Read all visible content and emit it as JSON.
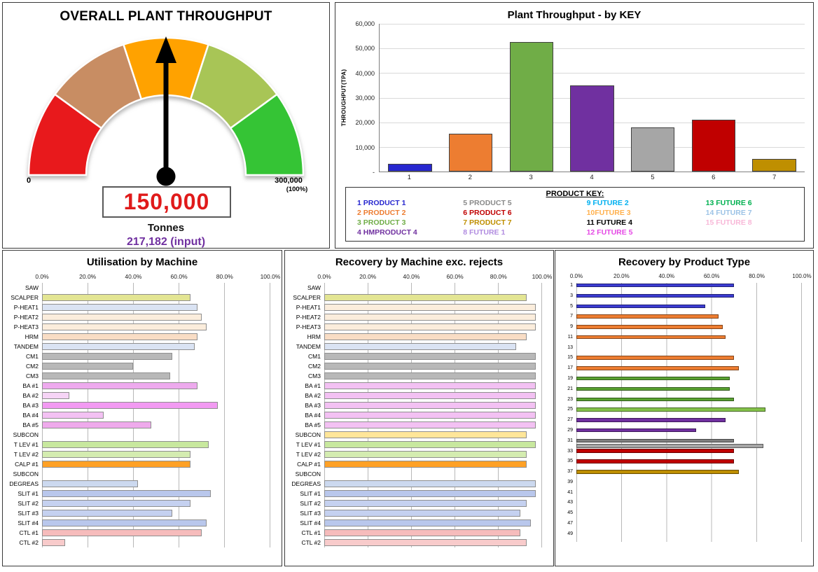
{
  "chart_data": [
    {
      "type": "gauge",
      "title": "OVERALL PLANT THROUGHPUT",
      "value": 150000,
      "display_value": "150,000",
      "unit": "Tonnes",
      "input_label": "217,182 (input)",
      "min_label": "0",
      "max_label": "300,000",
      "max_sublabel": "(100%)",
      "needle_fraction": 0.5,
      "segment_colors": [
        "#e8191c",
        "#c88d63",
        "#ffa200",
        "#a8c556",
        "#35c435"
      ]
    },
    {
      "type": "bar",
      "title": "Plant Throughput - by KEY",
      "ylabel": "THROUGHPUT(TPA)",
      "ymax": 60000,
      "yticks": [
        "60,000",
        "50,000",
        "40,000",
        "30,000",
        "20,000",
        "10,000",
        "-"
      ],
      "categories": [
        "1",
        "2",
        "3",
        "4",
        "5",
        "6",
        "7"
      ],
      "values": [
        3000,
        15500,
        52500,
        35000,
        18000,
        21000,
        5000
      ],
      "colors": [
        "#2727cf",
        "#ED7D31",
        "#70AD47",
        "#7030A0",
        "#a6a6a6",
        "#C00000",
        "#BF8F00"
      ],
      "legend_title": "PRODUCT KEY:",
      "legend_columns": [
        [
          {
            "label": "1 PRODUCT 1",
            "color": "#2727cf"
          },
          {
            "label": "2 PRODUCT 2",
            "color": "#ED7D31"
          },
          {
            "label": "3 PRODUCT 3",
            "color": "#70AD47"
          },
          {
            "label": "4 HMPRODUCT 4",
            "color": "#7030A0"
          }
        ],
        [
          {
            "label": "5 PRODUCT 5",
            "color": "#8a8a8a"
          },
          {
            "label": "6 PRODUCT 6",
            "color": "#C00000"
          },
          {
            "label": "7 PRODUCT 7",
            "color": "#BF8F00"
          },
          {
            "label": "8 FUTURE 1",
            "color": "#b18ce0"
          }
        ],
        [
          {
            "label": "9 FUTURE 2",
            "color": "#00B0F0"
          },
          {
            "label": "10FUTURE 3",
            "color": "#FFB14E"
          },
          {
            "label": "11 FUTURE 4",
            "color": "#000000"
          },
          {
            "label": "12 FUTURE 5",
            "color": "#E549E5"
          }
        ],
        [
          {
            "label": "13 FUTURE 6",
            "color": "#00B050"
          },
          {
            "label": "14 FUTURE 7",
            "color": "#9DC3E6"
          },
          {
            "label": "15 FUTURE 8",
            "color": "#F8B8D8"
          }
        ]
      ]
    },
    {
      "type": "bar",
      "orientation": "horizontal",
      "title": "Utilisation by Machine",
      "xmax": 100,
      "xticks": [
        "0.0%",
        "20.0%",
        "40.0%",
        "60.0%",
        "80.0%",
        "100.0%"
      ],
      "rows": [
        {
          "label": "SAW",
          "value": 0,
          "color": ""
        },
        {
          "label": "SCALPER",
          "value": 65,
          "color": "#e3e593"
        },
        {
          "label": "P-HEAT1",
          "value": 68,
          "color": "#dae3f3"
        },
        {
          "label": "P-HEAT2",
          "value": 70,
          "color": "#fbeddc"
        },
        {
          "label": "P-HEAT3",
          "value": 72,
          "color": "#fbeddc"
        },
        {
          "label": "HRM",
          "value": 68,
          "color": "#f9ddc5"
        },
        {
          "label": "TANDEM",
          "value": 67,
          "color": "#dae3f3"
        },
        {
          "label": "CM1",
          "value": 57,
          "color": "#b8b8b8"
        },
        {
          "label": "CM2",
          "value": 40,
          "color": "#b8b8b8"
        },
        {
          "label": "CM3",
          "value": 56,
          "color": "#b8b8b8"
        },
        {
          "label": "BA #1",
          "value": 68,
          "color": "#eeaaee"
        },
        {
          "label": "BA #2",
          "value": 12,
          "color": "#f6d4f6"
        },
        {
          "label": "BA #3",
          "value": 77,
          "color": "#f29af2"
        },
        {
          "label": "BA #4",
          "value": 27,
          "color": "#f3c1f3"
        },
        {
          "label": "BA #5",
          "value": 48,
          "color": "#efaaec"
        },
        {
          "label": "SUBCON",
          "value": 0,
          "color": ""
        },
        {
          "label": "T LEV #1",
          "value": 73,
          "color": "#c8e89e"
        },
        {
          "label": "T LEV #2",
          "value": 65,
          "color": "#d4ecb0"
        },
        {
          "label": "CALP #1",
          "value": 65,
          "color": "#ffa126"
        },
        {
          "label": "SUBCON",
          "value": 0,
          "color": ""
        },
        {
          "label": "DEGREAS",
          "value": 42,
          "color": "#ccd9ef"
        },
        {
          "label": "SLIT #1",
          "value": 74,
          "color": "#b9c7ec"
        },
        {
          "label": "SLIT #2",
          "value": 65,
          "color": "#c5d1f0"
        },
        {
          "label": "SLIT #3",
          "value": 57,
          "color": "#c5d1f0"
        },
        {
          "label": "SLIT #4",
          "value": 72,
          "color": "#b9c7ec"
        },
        {
          "label": "CTL #1",
          "value": 70,
          "color": "#f6bcbc"
        },
        {
          "label": "CTL #2",
          "value": 10,
          "color": "#f8cbcb"
        }
      ]
    },
    {
      "type": "bar",
      "orientation": "horizontal",
      "title": "Recovery by Machine exc. rejects",
      "xmax": 100,
      "xticks": [
        "0.0%",
        "20.0%",
        "40.0%",
        "60.0%",
        "80.0%",
        "100.0%"
      ],
      "rows": [
        {
          "label": "SAW",
          "value": 0,
          "color": ""
        },
        {
          "label": "SCALPER",
          "value": 93,
          "color": "#e3e593"
        },
        {
          "label": "P-HEAT1",
          "value": 97,
          "color": "#fbeddc"
        },
        {
          "label": "P-HEAT2",
          "value": 97,
          "color": "#fbeddc"
        },
        {
          "label": "P-HEAT3",
          "value": 97,
          "color": "#fbeddc"
        },
        {
          "label": "HRM",
          "value": 93,
          "color": "#f9ddc5"
        },
        {
          "label": "TANDEM",
          "value": 88,
          "color": "#dae3f3"
        },
        {
          "label": "CM1",
          "value": 97,
          "color": "#b8b8b8"
        },
        {
          "label": "CM2",
          "value": 97,
          "color": "#b8b8b8"
        },
        {
          "label": "CM3",
          "value": 97,
          "color": "#b8b8b8"
        },
        {
          "label": "BA #1",
          "value": 97,
          "color": "#f3c1f3"
        },
        {
          "label": "BA #2",
          "value": 97,
          "color": "#f3c1f3"
        },
        {
          "label": "BA #3",
          "value": 97,
          "color": "#f3c1f3"
        },
        {
          "label": "BA #4",
          "value": 97,
          "color": "#f3c1f3"
        },
        {
          "label": "BA #5",
          "value": 97,
          "color": "#f3c1f3"
        },
        {
          "label": "SUBCON",
          "value": 93,
          "color": "#ffe699"
        },
        {
          "label": "T LEV #1",
          "value": 97,
          "color": "#c8e89e"
        },
        {
          "label": "T LEV #2",
          "value": 93,
          "color": "#d4ecb0"
        },
        {
          "label": "CALP #1",
          "value": 93,
          "color": "#ffa126"
        },
        {
          "label": "SUBCON",
          "value": 0,
          "color": ""
        },
        {
          "label": "DEGREAS",
          "value": 97,
          "color": "#ccd9ef"
        },
        {
          "label": "SLIT #1",
          "value": 97,
          "color": "#b9c7ec"
        },
        {
          "label": "SLIT #2",
          "value": 93,
          "color": "#c5d1f0"
        },
        {
          "label": "SLIT #3",
          "value": 90,
          "color": "#c5d1f0"
        },
        {
          "label": "SLIT #4",
          "value": 95,
          "color": "#b9c7ec"
        },
        {
          "label": "CTL #1",
          "value": 90,
          "color": "#f6bcbc"
        },
        {
          "label": "CTL #2",
          "value": 93,
          "color": "#f8cbcb"
        }
      ]
    },
    {
      "type": "bar",
      "orientation": "horizontal",
      "title": "Recovery by Product Type",
      "xmax": 100,
      "xticks": [
        "0.0%",
        "20.0%",
        "40.0%",
        "60.0%",
        "80.0%",
        "100.0%"
      ],
      "rows": [
        {
          "label": "1",
          "value": 70,
          "color": "#3b3bd1"
        },
        {
          "label": "",
          "value": 0,
          "color": ""
        },
        {
          "label": "3",
          "value": 70,
          "color": "#3b3bd1"
        },
        {
          "label": "",
          "value": 0,
          "color": ""
        },
        {
          "label": "5",
          "value": 57,
          "color": "#3b3bd1"
        },
        {
          "label": "",
          "value": 0,
          "color": ""
        },
        {
          "label": "7",
          "value": 63,
          "color": "#ED7D31"
        },
        {
          "label": "",
          "value": 0,
          "color": ""
        },
        {
          "label": "9",
          "value": 65,
          "color": "#ED7D31"
        },
        {
          "label": "",
          "value": 0,
          "color": ""
        },
        {
          "label": "11",
          "value": 66,
          "color": "#ED7D31"
        },
        {
          "label": "",
          "value": 0,
          "color": ""
        },
        {
          "label": "13",
          "value": 0,
          "color": ""
        },
        {
          "label": "",
          "value": 0,
          "color": ""
        },
        {
          "label": "15",
          "value": 70,
          "color": "#ED7D31"
        },
        {
          "label": "",
          "value": 0,
          "color": ""
        },
        {
          "label": "17",
          "value": 72,
          "color": "#ED7D31"
        },
        {
          "label": "",
          "value": 0,
          "color": ""
        },
        {
          "label": "19",
          "value": 68,
          "color": "#5aa232"
        },
        {
          "label": "",
          "value": 0,
          "color": ""
        },
        {
          "label": "21",
          "value": 68,
          "color": "#5aa232"
        },
        {
          "label": "",
          "value": 0,
          "color": ""
        },
        {
          "label": "23",
          "value": 70,
          "color": "#5aa232"
        },
        {
          "label": "",
          "value": 0,
          "color": ""
        },
        {
          "label": "25",
          "value": 84,
          "color": "#84c24a"
        },
        {
          "label": "",
          "value": 0,
          "color": ""
        },
        {
          "label": "27",
          "value": 66,
          "color": "#7030A0"
        },
        {
          "label": "",
          "value": 0,
          "color": ""
        },
        {
          "label": "29",
          "value": 53,
          "color": "#7030A0"
        },
        {
          "label": "",
          "value": 0,
          "color": ""
        },
        {
          "label": "31",
          "value": 70,
          "color": "#7f7f7f"
        },
        {
          "label": "",
          "value": 83,
          "color": "#a6a6a6"
        },
        {
          "label": "33",
          "value": 70,
          "color": "#C00000"
        },
        {
          "label": "",
          "value": 0,
          "color": ""
        },
        {
          "label": "35",
          "value": 70,
          "color": "#C00000"
        },
        {
          "label": "",
          "value": 0,
          "color": ""
        },
        {
          "label": "37",
          "value": 72,
          "color": "#BF8F00"
        },
        {
          "label": "",
          "value": 0,
          "color": ""
        },
        {
          "label": "39",
          "value": 0,
          "color": ""
        },
        {
          "label": "",
          "value": 0,
          "color": ""
        },
        {
          "label": "41",
          "value": 0,
          "color": ""
        },
        {
          "label": "",
          "value": 0,
          "color": ""
        },
        {
          "label": "43",
          "value": 0,
          "color": ""
        },
        {
          "label": "",
          "value": 0,
          "color": ""
        },
        {
          "label": "45",
          "value": 0,
          "color": ""
        },
        {
          "label": "",
          "value": 0,
          "color": ""
        },
        {
          "label": "47",
          "value": 0,
          "color": ""
        },
        {
          "label": "",
          "value": 0,
          "color": ""
        },
        {
          "label": "49",
          "value": 0,
          "color": ""
        },
        {
          "label": "",
          "value": 0,
          "color": ""
        }
      ]
    }
  ]
}
